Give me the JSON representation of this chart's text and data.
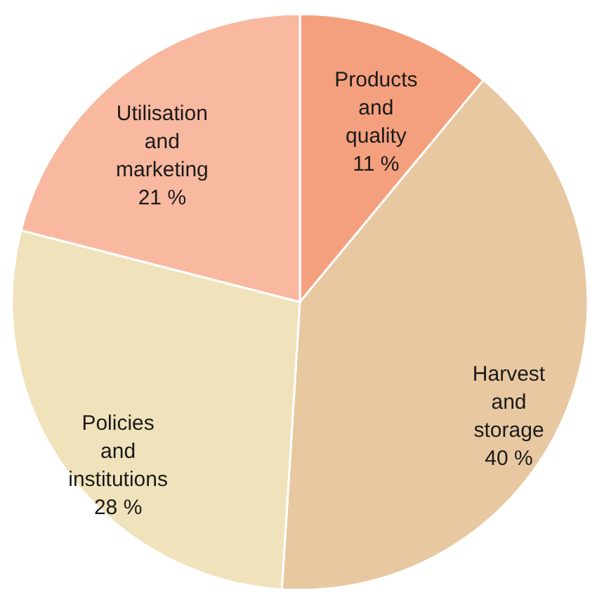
{
  "chart_data": {
    "type": "pie",
    "categories": [
      "Products and quality",
      "Harvest and storage",
      "Policies and institutions",
      "Utilisation and marketing"
    ],
    "values": [
      11,
      40,
      28,
      21
    ],
    "value_labels": [
      "11 %",
      "40 %",
      "28 %",
      "21 %"
    ],
    "colors": [
      "#f4a07e",
      "#e8c8a0",
      "#f0e2ba",
      "#f8b9a0"
    ]
  }
}
